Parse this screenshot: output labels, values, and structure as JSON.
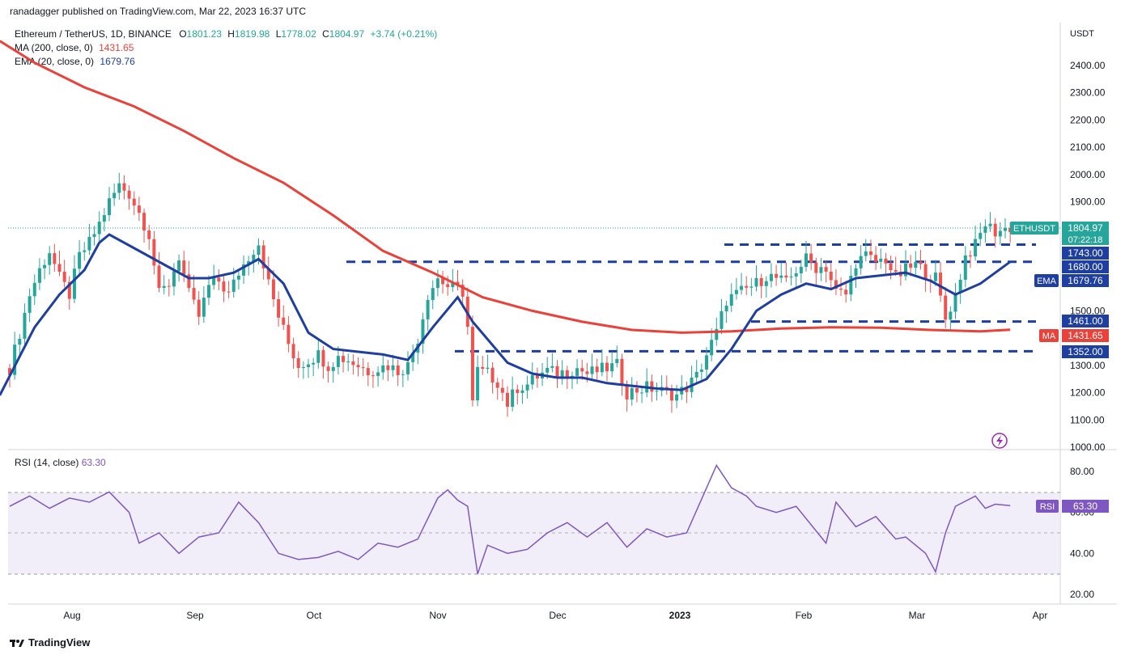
{
  "header": {
    "published": "ranadagger published on TradingView.com, Mar 22, 2023 16:37 UTC",
    "symbol": "Ethereum / TetherUS, 1D, BINANCE",
    "o_label": "O",
    "o": "1801.23",
    "h_label": "H",
    "h": "1819.98",
    "l_label": "L",
    "l": "1778.02",
    "c_label": "C",
    "c": "1804.97",
    "change": "+3.74 (+0.21%)",
    "ma_label": "MA (200, close, 0)",
    "ma_value": "1431.65",
    "ema_label": "EMA (20, close, 0)",
    "ema_value": "1679.76",
    "rsi_label": "RSI (14, close)",
    "rsi_value": "63.30"
  },
  "footer": {
    "brand": "TradingView"
  },
  "colors": {
    "up": "#26a69a",
    "down": "#ef5350",
    "ma": "#e8423a",
    "ema": "#1e3fa0",
    "rsi": "#7e57c2",
    "level": "#1e3fa0",
    "badge_price": "#26a69a"
  },
  "chart_data": {
    "type": "candlestick",
    "ylabel": "USDT",
    "yticks": [
      "2400.00",
      "2300.00",
      "2200.00",
      "2100.00",
      "2000.00",
      "1900.00",
      "1500.00",
      "1300.00",
      "1200.00",
      "1100.00",
      "1000.00"
    ],
    "xticks": [
      "Aug",
      "Sep",
      "Oct",
      "Nov",
      "Dec",
      "2023",
      "Feb",
      "Mar",
      "Apr"
    ],
    "ylim": [
      980,
      2490
    ],
    "price_badge": {
      "label": "ETHUSDT",
      "value": "1804.97",
      "countdown": "07:22:18"
    },
    "ema_badge": {
      "label": "EMA",
      "value": "1679.76"
    },
    "ma_badge": {
      "label": "MA",
      "value": "1431.65"
    },
    "levels": [
      {
        "price": 1743,
        "label": "1743.00",
        "start": "Oct 30"
      },
      {
        "price": 1680,
        "label": "1680.00",
        "start": "Sep 10"
      },
      {
        "price": 1461,
        "label": "1461.00",
        "start": "Jan 17"
      },
      {
        "price": 1352,
        "label": "1352.00",
        "start": "Nov 3"
      }
    ],
    "close_series": [
      [
        0,
        1290
      ],
      [
        2,
        1420
      ],
      [
        4,
        1560
      ],
      [
        6,
        1650
      ],
      [
        8,
        1720
      ],
      [
        10,
        1620
      ],
      [
        12,
        1560
      ],
      [
        14,
        1700
      ],
      [
        16,
        1750
      ],
      [
        18,
        1820
      ],
      [
        20,
        1900
      ],
      [
        22,
        1960
      ],
      [
        24,
        1930
      ],
      [
        26,
        1860
      ],
      [
        28,
        1780
      ],
      [
        30,
        1560
      ],
      [
        32,
        1600
      ],
      [
        34,
        1700
      ],
      [
        36,
        1560
      ],
      [
        38,
        1480
      ],
      [
        40,
        1590
      ],
      [
        42,
        1610
      ],
      [
        44,
        1560
      ],
      [
        46,
        1640
      ],
      [
        48,
        1700
      ],
      [
        50,
        1750
      ],
      [
        52,
        1600
      ],
      [
        54,
        1480
      ],
      [
        56,
        1380
      ],
      [
        58,
        1300
      ],
      [
        60,
        1320
      ],
      [
        62,
        1340
      ],
      [
        64,
        1300
      ],
      [
        66,
        1330
      ],
      [
        68,
        1320
      ],
      [
        70,
        1300
      ],
      [
        72,
        1280
      ],
      [
        74,
        1290
      ],
      [
        76,
        1300
      ],
      [
        78,
        1280
      ],
      [
        80,
        1300
      ],
      [
        82,
        1400
      ],
      [
        84,
        1560
      ],
      [
        86,
        1620
      ],
      [
        88,
        1590
      ],
      [
        90,
        1580
      ],
      [
        91,
        1570
      ],
      [
        92,
        1440
      ],
      [
        93,
        1160
      ],
      [
        94,
        1280
      ],
      [
        96,
        1270
      ],
      [
        98,
        1240
      ],
      [
        100,
        1160
      ],
      [
        102,
        1220
      ],
      [
        104,
        1230
      ],
      [
        106,
        1260
      ],
      [
        108,
        1280
      ],
      [
        110,
        1270
      ],
      [
        112,
        1280
      ],
      [
        114,
        1290
      ],
      [
        116,
        1270
      ],
      [
        118,
        1280
      ],
      [
        120,
        1290
      ],
      [
        122,
        1300
      ],
      [
        124,
        1200
      ],
      [
        126,
        1210
      ],
      [
        128,
        1220
      ],
      [
        130,
        1210
      ],
      [
        132,
        1200
      ],
      [
        134,
        1190
      ],
      [
        136,
        1220
      ],
      [
        138,
        1260
      ],
      [
        140,
        1340
      ],
      [
        142,
        1420
      ],
      [
        144,
        1540
      ],
      [
        146,
        1560
      ],
      [
        148,
        1580
      ],
      [
        150,
        1600
      ],
      [
        152,
        1630
      ],
      [
        154,
        1620
      ],
      [
        156,
        1600
      ],
      [
        158,
        1650
      ],
      [
        160,
        1690
      ],
      [
        162,
        1660
      ],
      [
        164,
        1660
      ],
      [
        166,
        1570
      ],
      [
        168,
        1560
      ],
      [
        170,
        1680
      ],
      [
        172,
        1700
      ],
      [
        174,
        1680
      ],
      [
        176,
        1690
      ],
      [
        178,
        1620
      ],
      [
        180,
        1650
      ],
      [
        182,
        1670
      ],
      [
        184,
        1640
      ],
      [
        186,
        1620
      ],
      [
        188,
        1470
      ],
      [
        190,
        1560
      ],
      [
        192,
        1700
      ],
      [
        194,
        1740
      ],
      [
        196,
        1820
      ],
      [
        198,
        1790
      ],
      [
        200,
        1800
      ],
      [
        201,
        1805
      ]
    ],
    "ma200": [
      [
        -2,
        2490
      ],
      [
        5,
        2410
      ],
      [
        15,
        2320
      ],
      [
        25,
        2250
      ],
      [
        35,
        2160
      ],
      [
        45,
        2060
      ],
      [
        55,
        1970
      ],
      [
        65,
        1850
      ],
      [
        75,
        1720
      ],
      [
        85,
        1640
      ],
      [
        95,
        1550
      ],
      [
        105,
        1500
      ],
      [
        115,
        1460
      ],
      [
        125,
        1430
      ],
      [
        135,
        1420
      ],
      [
        145,
        1425
      ],
      [
        155,
        1435
      ],
      [
        165,
        1440
      ],
      [
        175,
        1438
      ],
      [
        185,
        1430
      ],
      [
        195,
        1425
      ],
      [
        201,
        1431
      ]
    ],
    "ema20": [
      [
        -2,
        1190
      ],
      [
        5,
        1440
      ],
      [
        10,
        1560
      ],
      [
        15,
        1650
      ],
      [
        18,
        1750
      ],
      [
        20,
        1780
      ],
      [
        24,
        1740
      ],
      [
        28,
        1700
      ],
      [
        32,
        1660
      ],
      [
        36,
        1620
      ],
      [
        40,
        1620
      ],
      [
        45,
        1640
      ],
      [
        50,
        1690
      ],
      [
        55,
        1600
      ],
      [
        60,
        1420
      ],
      [
        65,
        1360
      ],
      [
        70,
        1350
      ],
      [
        75,
        1340
      ],
      [
        80,
        1320
      ],
      [
        85,
        1440
      ],
      [
        90,
        1550
      ],
      [
        93,
        1460
      ],
      [
        100,
        1310
      ],
      [
        105,
        1270
      ],
      [
        110,
        1255
      ],
      [
        115,
        1255
      ],
      [
        120,
        1235
      ],
      [
        125,
        1225
      ],
      [
        130,
        1215
      ],
      [
        135,
        1210
      ],
      [
        140,
        1250
      ],
      [
        145,
        1360
      ],
      [
        150,
        1500
      ],
      [
        155,
        1560
      ],
      [
        160,
        1600
      ],
      [
        165,
        1580
      ],
      [
        170,
        1620
      ],
      [
        175,
        1630
      ],
      [
        180,
        1640
      ],
      [
        185,
        1610
      ],
      [
        190,
        1560
      ],
      [
        195,
        1600
      ],
      [
        201,
        1680
      ]
    ],
    "rsi": {
      "levels": [
        70,
        50,
        30
      ],
      "yticks": [
        "80.00",
        "60.00",
        "40.00",
        "20.00"
      ],
      "ylim": [
        15,
        90
      ],
      "values": [
        [
          0,
          63
        ],
        [
          4,
          68
        ],
        [
          8,
          62
        ],
        [
          12,
          67
        ],
        [
          16,
          65
        ],
        [
          20,
          70
        ],
        [
          24,
          60
        ],
        [
          26,
          45
        ],
        [
          30,
          50
        ],
        [
          34,
          40
        ],
        [
          38,
          48
        ],
        [
          42,
          50
        ],
        [
          46,
          65
        ],
        [
          50,
          55
        ],
        [
          54,
          40
        ],
        [
          58,
          37
        ],
        [
          62,
          38
        ],
        [
          66,
          41
        ],
        [
          70,
          37
        ],
        [
          74,
          45
        ],
        [
          78,
          43
        ],
        [
          82,
          47
        ],
        [
          86,
          67
        ],
        [
          88,
          71
        ],
        [
          90,
          66
        ],
        [
          92,
          63
        ],
        [
          94,
          30
        ],
        [
          96,
          44
        ],
        [
          100,
          40
        ],
        [
          104,
          42
        ],
        [
          108,
          50
        ],
        [
          112,
          55
        ],
        [
          116,
          48
        ],
        [
          120,
          55
        ],
        [
          124,
          43
        ],
        [
          128,
          52
        ],
        [
          132,
          48
        ],
        [
          136,
          50
        ],
        [
          140,
          72
        ],
        [
          142,
          83
        ],
        [
          145,
          72
        ],
        [
          148,
          68
        ],
        [
          150,
          63
        ],
        [
          154,
          60
        ],
        [
          158,
          63
        ],
        [
          162,
          51
        ],
        [
          164,
          45
        ],
        [
          166,
          65
        ],
        [
          170,
          53
        ],
        [
          174,
          58
        ],
        [
          178,
          47
        ],
        [
          180,
          48
        ],
        [
          184,
          40
        ],
        [
          186,
          31
        ],
        [
          188,
          50
        ],
        [
          190,
          63
        ],
        [
          194,
          68
        ],
        [
          196,
          62
        ],
        [
          198,
          64
        ],
        [
          201,
          63.3
        ]
      ]
    }
  }
}
